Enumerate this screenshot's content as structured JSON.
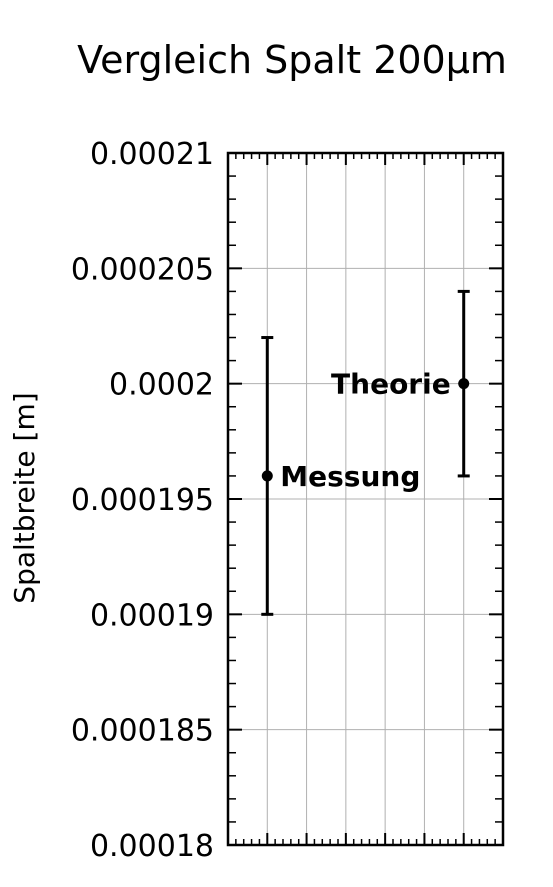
{
  "chart_data": {
    "type": "scatter",
    "title": "Vergleich Spalt 200µm",
    "xlabel": "",
    "ylabel": "Spaltbreite [m]",
    "ylim": [
      0.00018,
      0.00021
    ],
    "yticks": [
      "0.00021",
      "0.000205",
      "0.0002",
      "0.000195",
      "0.00019",
      "0.000185",
      "0.00018"
    ],
    "ytick_values": [
      0.00021,
      0.000205,
      0.0002,
      0.000195,
      0.00019,
      0.000185,
      0.00018
    ],
    "xlim": [
      0,
      7
    ],
    "grid": true,
    "points": [
      {
        "label": "Messung",
        "x": 1,
        "y": 0.000196,
        "yerr": 6e-06
      },
      {
        "label": "Theorie",
        "x": 6,
        "y": 0.0002,
        "yerr": 4e-06
      }
    ]
  }
}
